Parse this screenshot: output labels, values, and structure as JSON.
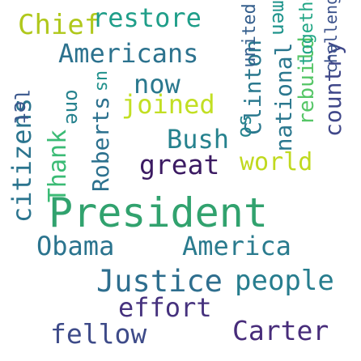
{
  "words": [
    {
      "text": "President",
      "color": "#31a26e"
    },
    {
      "text": "Chief",
      "color": "#b0c81c"
    },
    {
      "text": "restore",
      "color": "#1f9e89"
    },
    {
      "text": "Americans",
      "color": "#2c728e"
    },
    {
      "text": "now",
      "color": "#2a788e"
    },
    {
      "text": "joined",
      "color": "#c2df23"
    },
    {
      "text": "Bush",
      "color": "#26828e"
    },
    {
      "text": "great",
      "color": "#3b1a62"
    },
    {
      "text": "world",
      "color": "#c0d91f"
    },
    {
      "text": "Obama",
      "color": "#2b748e"
    },
    {
      "text": "America",
      "color": "#2a7b8e"
    },
    {
      "text": "Justice",
      "color": "#2e6e8e"
    },
    {
      "text": "people",
      "color": "#277d8e"
    },
    {
      "text": "effort",
      "color": "#46327e"
    },
    {
      "text": "fellow",
      "color": "#3e4b89"
    },
    {
      "text": "Carter",
      "color": "#472c7a"
    },
    {
      "text": "citizens",
      "color": "#2b748e"
    },
    {
      "text": "Thank",
      "color": "#3bbb75"
    },
    {
      "text": "Roberts",
      "color": "#2c718e"
    },
    {
      "text": "Clinton",
      "color": "#2a788e"
    },
    {
      "text": "national",
      "color": "#2a778e"
    },
    {
      "text": "rebuild",
      "color": "#56c667"
    },
    {
      "text": "country",
      "color": "#3f4789"
    },
    {
      "text": "united",
      "color": "#355f8d"
    },
    {
      "text": "together",
      "color": "#21a685"
    },
    {
      "text": "challenge",
      "color": "#3b528b"
    },
    {
      "text": "us",
      "color": "#21918c"
    },
    {
      "text": "let",
      "color": "#39568c"
    },
    {
      "text": "one",
      "color": "#26828e"
    },
    {
      "text": "men",
      "color": "#1f948c"
    },
    {
      "text": "so",
      "color": "#25848e"
    }
  ]
}
